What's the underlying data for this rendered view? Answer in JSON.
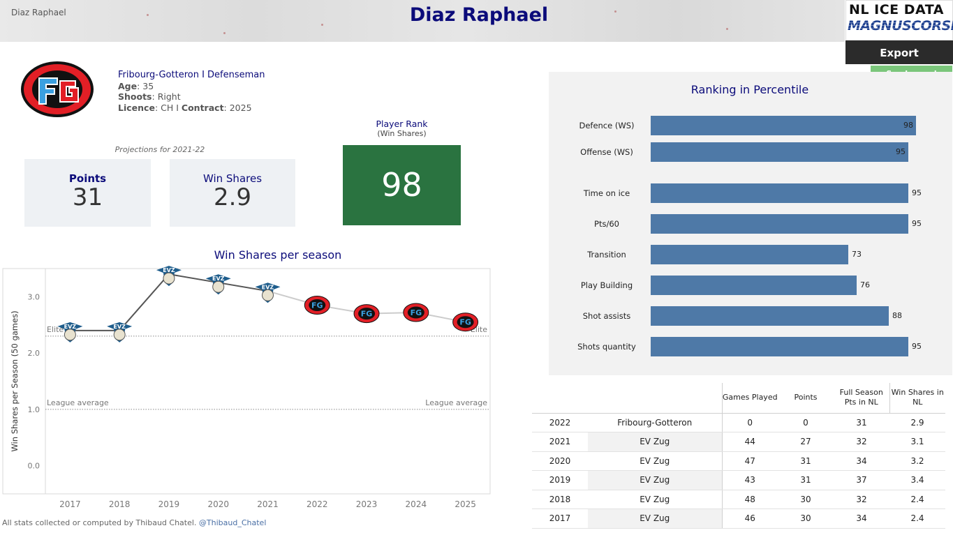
{
  "header": {
    "small_name": "Diaz Raphael",
    "title": "Diaz Raphael",
    "brand_line1": "NL ICE DATA",
    "brand_line2": "MAGNUSCORSI",
    "export_label": "Export",
    "legend_label": "See Legend"
  },
  "player": {
    "team_line": "Fribourg-Gotteron  I  Defenseman",
    "age_label": "Age",
    "age": "35",
    "shoots_label": "Shoots",
    "shoots": "Right",
    "licence_label": "Licence",
    "licence": "CH",
    "separator": "I",
    "contract_label": "Contract",
    "contract": "2025"
  },
  "projections": {
    "label": "Projections for 2021-22",
    "points_label": "Points",
    "points": "31",
    "ws_label": "Win Shares",
    "ws": "2.9"
  },
  "rank": {
    "label": "Player Rank",
    "sub": "(Win Shares)",
    "value": "98",
    "color": "#2a7340"
  },
  "ws_chart": {
    "title": "Win Shares per season",
    "ylabel": "Win Shares per Season (50 games)",
    "elite_label": "Elite",
    "league_label": "League average",
    "elite_value": 2.3,
    "league_value": 1.0,
    "ylim": [
      -0.5,
      3.5
    ],
    "yticks": [
      "0.0",
      "1.0",
      "2.0",
      "3.0"
    ],
    "ytick_values": [
      0,
      1,
      2,
      3
    ],
    "years": [
      "2017",
      "2018",
      "2019",
      "2020",
      "2021",
      "2022",
      "2023",
      "2024",
      "2025"
    ],
    "values": [
      2.4,
      2.4,
      3.4,
      3.25,
      3.1,
      2.85,
      2.7,
      2.72,
      2.55
    ],
    "teams": [
      "EVZ",
      "EVZ",
      "EVZ",
      "EVZ",
      "EVZ",
      "FG",
      "FG",
      "FG",
      "FG"
    ],
    "projected_from": 5,
    "colors": {
      "actual": "#555555",
      "projected": "#cccccc"
    }
  },
  "ranking": {
    "title": "Ranking in Percentile",
    "color": "#4e79a7",
    "items": [
      {
        "label": "Defence (WS)",
        "value": 98
      },
      {
        "label": "Offense (WS)",
        "value": 95
      },
      {
        "label": "Time on ice",
        "value": 95
      },
      {
        "label": "Pts/60",
        "value": 95
      },
      {
        "label": "Transition",
        "value": 73
      },
      {
        "label": "Play Building",
        "value": 76
      },
      {
        "label": "Shot assists",
        "value": 88
      },
      {
        "label": "Shots quantity",
        "value": 95
      }
    ]
  },
  "table": {
    "headers": [
      "Games Played",
      "Points",
      "Full Season Pts in NL",
      "Win Shares in NL"
    ],
    "rows": [
      [
        "2022",
        "Fribourg-Gotteron",
        "0",
        "0",
        "31",
        "2.9"
      ],
      [
        "2021",
        "EV Zug",
        "44",
        "27",
        "32",
        "3.1"
      ],
      [
        "2020",
        "EV Zug",
        "47",
        "31",
        "34",
        "3.2"
      ],
      [
        "2019",
        "EV Zug",
        "43",
        "31",
        "37",
        "3.4"
      ],
      [
        "2018",
        "EV Zug",
        "48",
        "30",
        "32",
        "2.4"
      ],
      [
        "2017",
        "EV Zug",
        "46",
        "30",
        "34",
        "2.4"
      ]
    ]
  },
  "footer": {
    "text": "All stats collected or computed by Thibaud Chatel.",
    "handle": "@Thibaud_Chatel"
  }
}
